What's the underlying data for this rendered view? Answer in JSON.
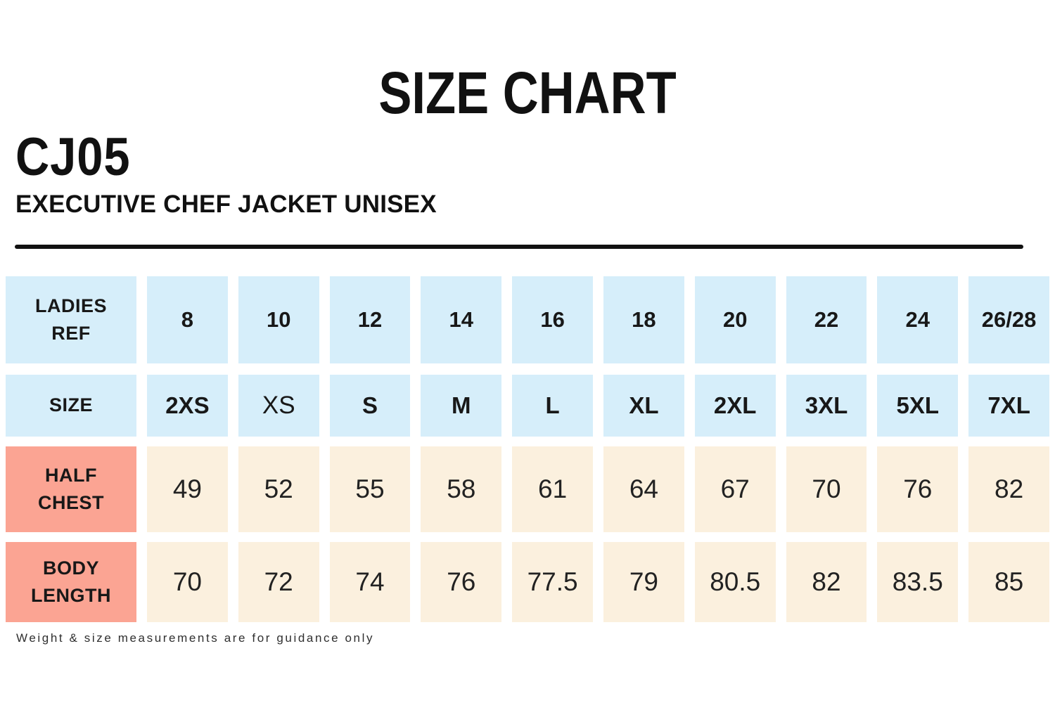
{
  "header": {
    "title": "SIZE CHART",
    "product_code": "CJ05",
    "product_name": "EXECUTIVE CHEF JACKET UNISEX"
  },
  "footer": {
    "note": "Weight & size measurements are for guidance only"
  },
  "colors": {
    "header_cell_blue": "#d6eefa",
    "label_cell_salmon": "#fba493",
    "value_cell_cream": "#fbf0de",
    "divider": "#111111",
    "text": "#161616"
  },
  "chart_data": {
    "type": "table",
    "title": "SIZE CHART",
    "columns_per_row": 10,
    "rows": [
      {
        "label": "LADIES REF",
        "header": true,
        "palette": "blue",
        "values": [
          "8",
          "10",
          "12",
          "14",
          "16",
          "18",
          "20",
          "22",
          "24",
          "26/28"
        ]
      },
      {
        "label": "SIZE",
        "header": true,
        "palette": "blue",
        "values": [
          "2XS",
          "XS",
          "S",
          "M",
          "L",
          "XL",
          "2XL",
          "3XL",
          "5XL",
          "7XL"
        ],
        "light_values": [
          "XS"
        ]
      },
      {
        "label": "HALF CHEST",
        "header": false,
        "palette": "salmon",
        "values": [
          "49",
          "52",
          "55",
          "58",
          "61",
          "64",
          "67",
          "70",
          "76",
          "82"
        ]
      },
      {
        "label": "BODY LENGTH",
        "header": false,
        "palette": "salmon",
        "values": [
          "70",
          "72",
          "74",
          "76",
          "77.5",
          "79",
          "80.5",
          "82",
          "83.5",
          "85"
        ]
      }
    ]
  }
}
